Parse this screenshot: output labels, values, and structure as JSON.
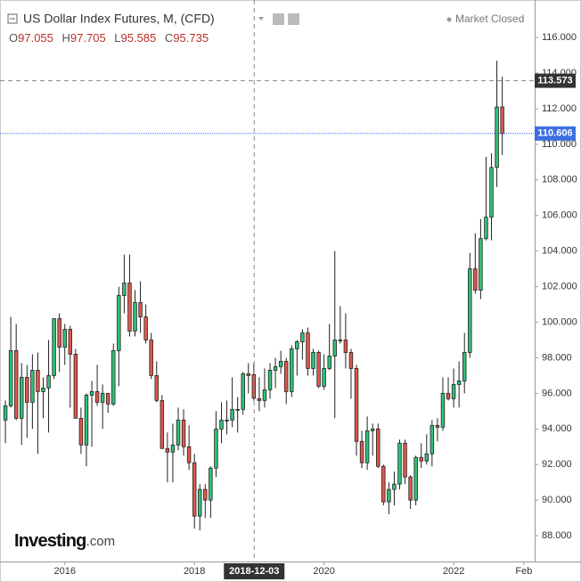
{
  "chart_data": {
    "type": "candlestick",
    "title": "US Dollar Index Futures, M, (CFD)",
    "status": "Market Closed",
    "ohlc_header": {
      "open_label": "O",
      "open": 97.055,
      "high_label": "H",
      "high": 97.705,
      "low_label": "L",
      "low": 95.585,
      "close_label": "C",
      "close": 95.735
    },
    "logo": "Investing",
    "logo_suffix": ".com",
    "up_color": "#2fc27a",
    "down_color": "#e2574c",
    "x": [
      "2015-02",
      "2015-03",
      "2015-04",
      "2015-05",
      "2015-06",
      "2015-07",
      "2015-08",
      "2015-09",
      "2015-10",
      "2015-11",
      "2015-12",
      "2016-01",
      "2016-02",
      "2016-03",
      "2016-04",
      "2016-05",
      "2016-06",
      "2016-07",
      "2016-08",
      "2016-09",
      "2016-10",
      "2016-11",
      "2016-12",
      "2017-01",
      "2017-02",
      "2017-03",
      "2017-04",
      "2017-05",
      "2017-06",
      "2017-07",
      "2017-08",
      "2017-09",
      "2017-10",
      "2017-11",
      "2017-12",
      "2018-01",
      "2018-02",
      "2018-03",
      "2018-04",
      "2018-05",
      "2018-06",
      "2018-07",
      "2018-08",
      "2018-09",
      "2018-10",
      "2018-11",
      "2018-12",
      "2019-01",
      "2019-02",
      "2019-03",
      "2019-04",
      "2019-05",
      "2019-06",
      "2019-07",
      "2019-08",
      "2019-09",
      "2019-10",
      "2019-11",
      "2019-12",
      "2020-01",
      "2020-02",
      "2020-03",
      "2020-04",
      "2020-05",
      "2020-06",
      "2020-07",
      "2020-08",
      "2020-09",
      "2020-10",
      "2020-11",
      "2020-12",
      "2021-01",
      "2021-02",
      "2021-03",
      "2021-04",
      "2021-05",
      "2021-06",
      "2021-07",
      "2021-08",
      "2021-09",
      "2021-10",
      "2021-11",
      "2021-12",
      "2022-01",
      "2022-02",
      "2022-03",
      "2022-04",
      "2022-05",
      "2022-06",
      "2022-07",
      "2022-08",
      "2022-09",
      "2022-10"
    ],
    "open": [
      94.5,
      95.3,
      98.4,
      94.6,
      96.9,
      95.5,
      97.3,
      96.1,
      96.3,
      97.0,
      100.2,
      98.6,
      99.6,
      98.2,
      94.6,
      93.1,
      95.9,
      96.1,
      95.5,
      96.0,
      95.4,
      98.4,
      101.5,
      102.2,
      99.5,
      101.1,
      100.3,
      99.0,
      97.0,
      95.6,
      92.9,
      92.7,
      93.1,
      94.5,
      93.0,
      92.1,
      89.1,
      90.6,
      90.0,
      91.8,
      94.0,
      94.5,
      94.5,
      95.1,
      95.1,
      97.1,
      97.055,
      95.7,
      95.6,
      96.2,
      97.3,
      97.5,
      97.8,
      96.1,
      98.5,
      98.9,
      99.4,
      97.4,
      98.3,
      96.4,
      97.4,
      98.1,
      99.0,
      99.0,
      98.3,
      97.4,
      93.3,
      92.1,
      93.9,
      94.0,
      91.9,
      89.9,
      90.6,
      90.9,
      93.2,
      91.3,
      90.0,
      92.4,
      92.2,
      92.6,
      94.2,
      94.1,
      96.0,
      95.7,
      96.5,
      96.7,
      98.3,
      103.0,
      101.8,
      104.7,
      105.9,
      108.7,
      112.1
    ],
    "high": [
      95.6,
      100.3,
      99.9,
      97.7,
      97.6,
      98.2,
      98.3,
      96.9,
      99.0,
      100.2,
      100.5,
      99.9,
      99.8,
      98.5,
      95.2,
      96.0,
      96.7,
      97.6,
      96.5,
      96.0,
      98.8,
      102.0,
      103.8,
      103.8,
      101.8,
      102.3,
      101.0,
      99.4,
      97.8,
      95.9,
      93.8,
      94.3,
      95.2,
      95.1,
      94.2,
      92.6,
      90.9,
      90.9,
      91.9,
      95.0,
      95.5,
      95.6,
      96.9,
      95.8,
      97.2,
      97.7,
      97.705,
      96.9,
      97.4,
      97.7,
      98.0,
      98.4,
      98.0,
      98.7,
      99.0,
      99.6,
      99.7,
      98.5,
      98.4,
      98.2,
      99.9,
      104.0,
      100.9,
      100.5,
      98.5,
      97.6,
      93.9,
      94.7,
      94.3,
      94.3,
      92.0,
      91.0,
      91.6,
      93.4,
      93.4,
      91.4,
      92.5,
      93.2,
      93.7,
      94.5,
      94.6,
      96.9,
      96.9,
      97.4,
      97.8,
      99.4,
      103.9,
      105.0,
      105.8,
      109.3,
      109.5,
      114.7,
      113.8
    ],
    "low": [
      93.2,
      95.2,
      94.5,
      93.1,
      93.5,
      94.0,
      92.6,
      94.6,
      93.8,
      96.8,
      97.2,
      97.6,
      95.2,
      94.6,
      92.6,
      91.9,
      93.0,
      95.3,
      94.0,
      94.9,
      95.3,
      96.4,
      100.5,
      99.2,
      99.2,
      99.4,
      98.8,
      96.8,
      95.5,
      92.9,
      91.0,
      91.0,
      92.8,
      92.5,
      91.7,
      88.4,
      88.3,
      89.0,
      89.0,
      91.3,
      93.2,
      93.7,
      94.1,
      93.8,
      94.8,
      96.0,
      95.585,
      95.0,
      95.2,
      95.7,
      96.3,
      97.1,
      95.4,
      95.8,
      97.0,
      97.9,
      97.0,
      97.0,
      96.3,
      96.2,
      97.3,
      94.6,
      98.8,
      97.4,
      95.7,
      92.5,
      91.8,
      91.7,
      92.5,
      91.8,
      89.7,
      89.2,
      89.7,
      90.6,
      90.9,
      89.5,
      89.7,
      91.8,
      92.0,
      91.9,
      93.3,
      93.9,
      95.6,
      95.2,
      95.2,
      96.0,
      98.0,
      101.6,
      101.3,
      104.6,
      104.6,
      107.6,
      109.4
    ],
    "close": [
      95.3,
      98.4,
      94.6,
      96.9,
      95.5,
      97.3,
      96.1,
      96.3,
      97.0,
      100.2,
      98.6,
      99.6,
      98.2,
      94.6,
      93.1,
      95.9,
      96.1,
      95.5,
      96.0,
      95.4,
      98.4,
      101.5,
      102.2,
      99.5,
      101.1,
      100.3,
      99.0,
      97.0,
      95.6,
      92.9,
      92.7,
      93.1,
      94.5,
      93.0,
      92.1,
      89.1,
      90.6,
      90.0,
      91.8,
      94.0,
      94.5,
      94.5,
      95.1,
      95.1,
      97.1,
      97.0,
      95.735,
      95.6,
      96.2,
      97.3,
      97.5,
      97.8,
      96.1,
      98.5,
      98.9,
      99.4,
      97.4,
      98.3,
      96.4,
      97.4,
      98.1,
      99.0,
      99.0,
      98.3,
      97.4,
      93.3,
      92.1,
      93.9,
      94.0,
      91.9,
      89.9,
      90.6,
      90.9,
      93.2,
      91.3,
      90.0,
      92.4,
      92.2,
      92.6,
      94.2,
      94.1,
      96.0,
      95.7,
      96.5,
      96.7,
      98.3,
      103.0,
      101.8,
      104.7,
      105.9,
      108.7,
      112.1,
      110.6
    ],
    "xlim": [
      "2015-01",
      "2023-04"
    ],
    "xticks": [
      {
        "value": "2016-01",
        "label": "2016"
      },
      {
        "value": "2018-01",
        "label": "2018"
      },
      {
        "value": "2020-01",
        "label": "2020"
      },
      {
        "value": "2022-01",
        "label": "2022"
      },
      {
        "value": "2023-02",
        "label": "Feb"
      }
    ],
    "ylim": [
      86.55,
      118.11
    ],
    "yticks": [
      {
        "value": 88,
        "label": "88.000"
      },
      {
        "value": 90,
        "label": "90.000"
      },
      {
        "value": 92,
        "label": "92.000"
      },
      {
        "value": 94,
        "label": "94.000"
      },
      {
        "value": 96,
        "label": "96.000"
      },
      {
        "value": 98,
        "label": "98.000"
      },
      {
        "value": 100,
        "label": "100.000"
      },
      {
        "value": 102,
        "label": "102.000"
      },
      {
        "value": 104,
        "label": "104.000"
      },
      {
        "value": 106,
        "label": "106.000"
      },
      {
        "value": 108,
        "label": "108.000"
      },
      {
        "value": 110,
        "label": "110.000"
      },
      {
        "value": 112,
        "label": "112.000"
      },
      {
        "value": 114,
        "label": "114.000"
      },
      {
        "value": 116,
        "label": "116.000"
      }
    ],
    "crosshair": {
      "date": "2018-12-03",
      "price": 113.573
    },
    "last_price": 110.606,
    "last_price_color": "#3d6fe0"
  }
}
